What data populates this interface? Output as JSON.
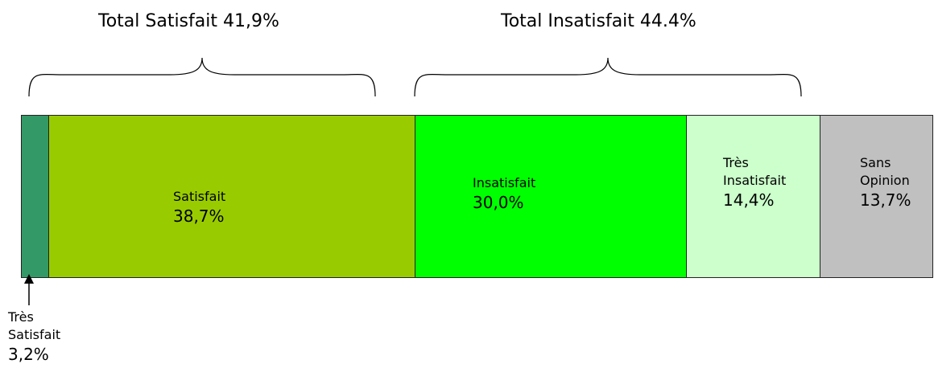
{
  "chart_data": {
    "type": "bar",
    "orientation": "horizontal-stacked",
    "groups": [
      {
        "title": "Total Satisfait 41,9%",
        "categories": [
          "Très Satisfait",
          "Satisfait"
        ]
      },
      {
        "title": "Total Insatisfait 44.4%",
        "categories": [
          "Insatisfait",
          "Très Insatisfait"
        ]
      }
    ],
    "segments": [
      {
        "name": "Très Satisfait",
        "name_lines": [
          "Très",
          "Satisfait"
        ],
        "value": 3.2,
        "label": "3,2%",
        "color": "#339966"
      },
      {
        "name": "Satisfait",
        "name_lines": [
          "Satisfait"
        ],
        "value": 38.7,
        "label": "38,7%",
        "color": "#99CC00"
      },
      {
        "name": "Insatisfait",
        "name_lines": [
          "Insatisfait"
        ],
        "value": 30.0,
        "label": "30,0%",
        "color": "#00FF00"
      },
      {
        "name": "Très Insatisfait",
        "name_lines": [
          "Très",
          "Insatisfait"
        ],
        "value": 14.4,
        "label": "14,4%",
        "color": "#CCFFCC"
      },
      {
        "name": "Sans Opinion",
        "name_lines": [
          "Sans",
          "Opinion"
        ],
        "value": 13.7,
        "label": "13,7%",
        "color": "#C0C0C0"
      }
    ]
  }
}
